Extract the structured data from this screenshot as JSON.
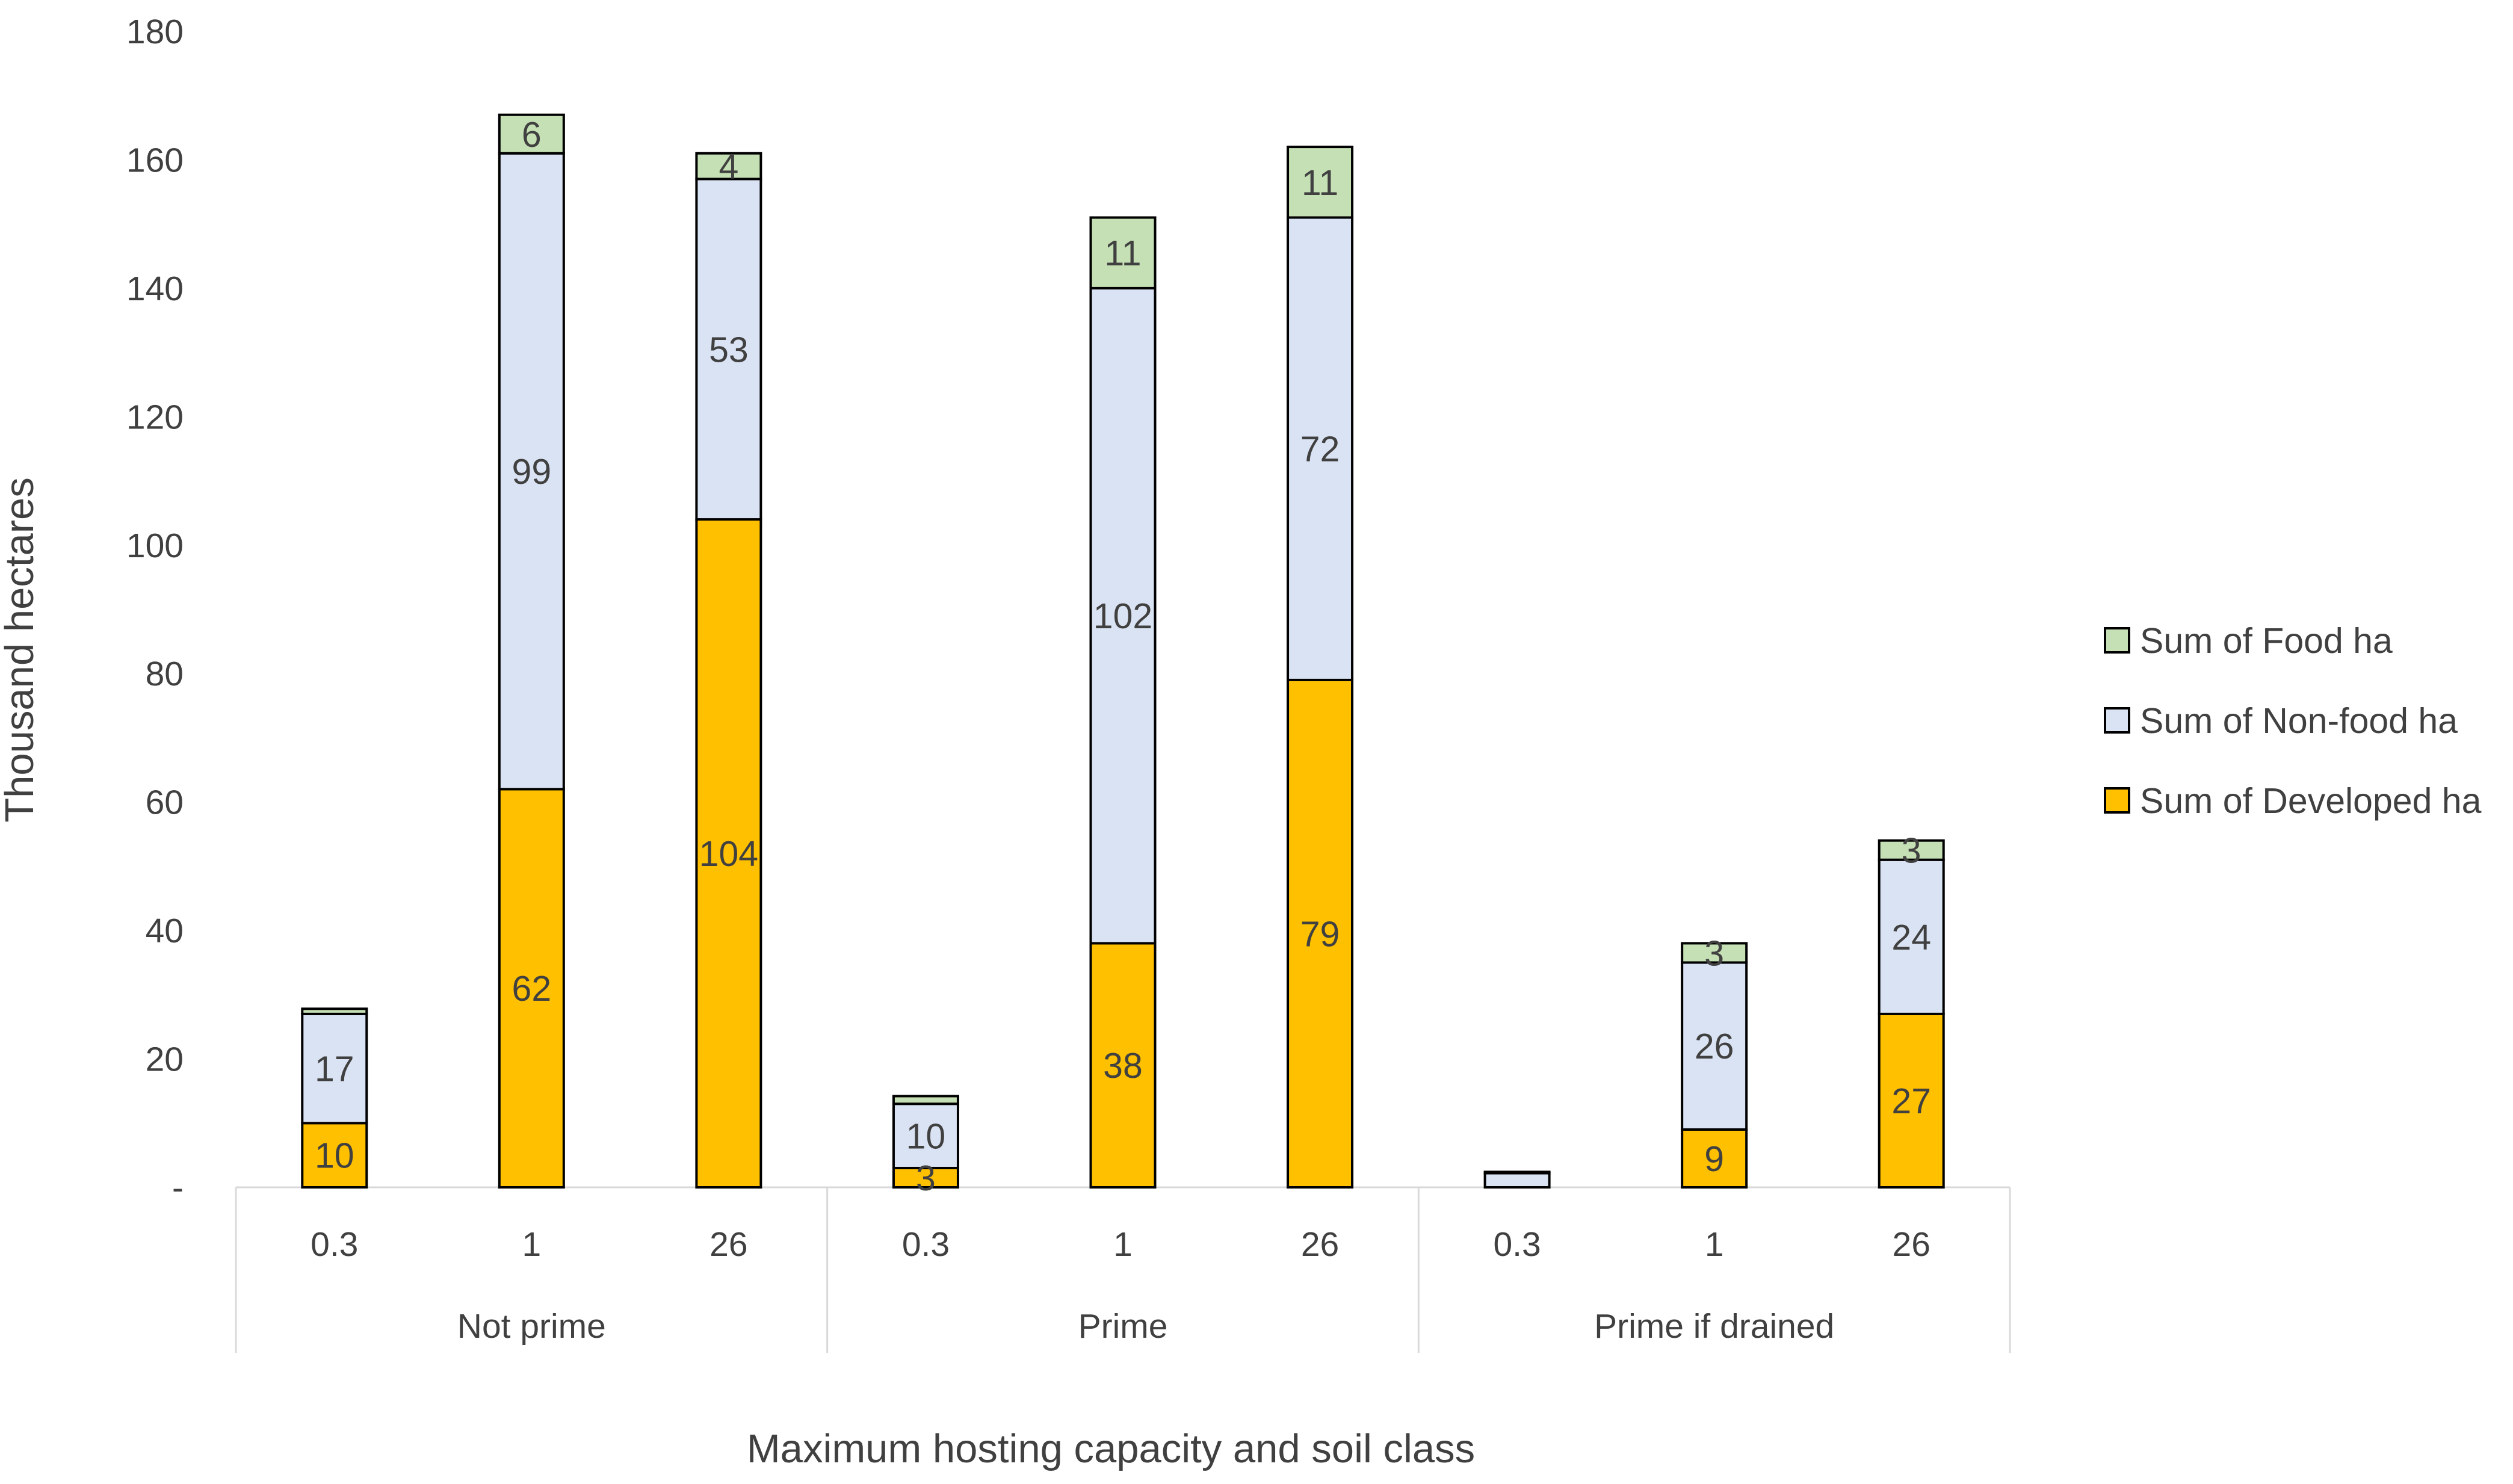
{
  "chart_data": {
    "type": "bar",
    "stacked": true,
    "title": "",
    "xlabel": "Maximum hosting capacity and soil class",
    "ylabel": "Thousand hectares",
    "ylim": [
      0,
      180
    ],
    "y_ticks": [
      0,
      20,
      40,
      60,
      80,
      100,
      120,
      140,
      160,
      180
    ],
    "y_tick_labels": [
      "-",
      "20",
      "40",
      "60",
      "80",
      "100",
      "120",
      "140",
      "160",
      "180"
    ],
    "legend_position": "right",
    "groups": [
      {
        "name": "Not prime",
        "categories": [
          "0.3",
          "1",
          "26"
        ]
      },
      {
        "name": "Prime",
        "categories": [
          "0.3",
          "1",
          "26"
        ]
      },
      {
        "name": "Prime if drained",
        "categories": [
          "0.3",
          "1",
          "26"
        ]
      }
    ],
    "series": [
      {
        "name": "Sum of Developed ha",
        "color": "#FFC000",
        "values": [
          10,
          62,
          104,
          3,
          38,
          79,
          0,
          9,
          27
        ],
        "labels": [
          "10",
          "62",
          "104",
          "3",
          "38",
          "79",
          "",
          "9",
          "27"
        ]
      },
      {
        "name": "Sum of Non-food ha",
        "color": "#DAE3F3",
        "values": [
          17,
          99,
          53,
          10,
          102,
          72,
          2.2,
          26,
          24
        ],
        "labels": [
          "17",
          "99",
          "53",
          "10",
          "102",
          "72",
          "",
          "26",
          "24"
        ]
      },
      {
        "name": "Sum of Food ha",
        "color": "#C5E0B4",
        "values": [
          0.8,
          6,
          4,
          1.2,
          11,
          11,
          0.2,
          3,
          3
        ],
        "labels": [
          "",
          "6",
          "4",
          "",
          "11",
          "11",
          "",
          "3",
          "3"
        ]
      }
    ],
    "legend_order": [
      "Sum of Food ha",
      "Sum of Non-food ha",
      "Sum of Developed ha"
    ]
  }
}
